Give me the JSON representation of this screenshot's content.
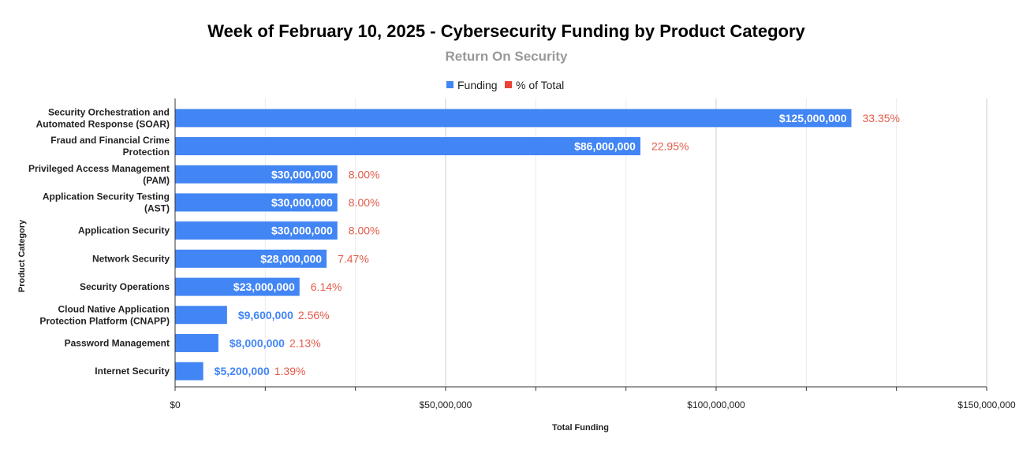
{
  "colors": {
    "funding": "#4285f4",
    "percent": "#ea4335",
    "grid_major": "#cccccc",
    "grid_minor": "#ebebeb",
    "axis": "#333333"
  },
  "chart_data": {
    "type": "bar",
    "orientation": "horizontal",
    "title": "Week of February 10, 2025 - Cybersecurity Funding by Product Category",
    "subtitle": "Return On Security",
    "xlabel": "Total Funding",
    "ylabel": "Product Category",
    "xlim": [
      0,
      150000000
    ],
    "legend": [
      {
        "name": "Funding",
        "color": "#4285f4"
      },
      {
        "name": "% of Total",
        "color": "#ea4335"
      }
    ],
    "legend_position": "top-center",
    "grid": true,
    "x_ticks": [
      {
        "value": 0,
        "label": "$0"
      },
      {
        "value": 50000000,
        "label": "$50,000,000"
      },
      {
        "value": 100000000,
        "label": "$100,000,000"
      },
      {
        "value": 150000000,
        "label": "$150,000,000"
      }
    ],
    "minor_ticks": [
      16666667,
      33333333,
      66666667,
      83333333,
      116666667,
      133333333
    ],
    "categories": [
      {
        "lines": [
          "Security Orchestration and",
          "Automated Response (SOAR)"
        ],
        "value": 125000000,
        "value_label": "$125,000,000",
        "percent_label": "33.35%"
      },
      {
        "lines": [
          "Fraud and Financial Crime",
          "Protection"
        ],
        "value": 86000000,
        "value_label": "$86,000,000",
        "percent_label": "22.95%"
      },
      {
        "lines": [
          "Privileged Access Management",
          "(PAM)"
        ],
        "value": 30000000,
        "value_label": "$30,000,000",
        "percent_label": "8.00%"
      },
      {
        "lines": [
          "Application Security Testing",
          "(AST)"
        ],
        "value": 30000000,
        "value_label": "$30,000,000",
        "percent_label": "8.00%"
      },
      {
        "lines": [
          "Application Security"
        ],
        "value": 30000000,
        "value_label": "$30,000,000",
        "percent_label": "8.00%"
      },
      {
        "lines": [
          "Network Security"
        ],
        "value": 28000000,
        "value_label": "$28,000,000",
        "percent_label": "7.47%"
      },
      {
        "lines": [
          "Security Operations"
        ],
        "value": 23000000,
        "value_label": "$23,000,000",
        "percent_label": "6.14%"
      },
      {
        "lines": [
          "Cloud Native Application",
          "Protection Platform (CNAPP)"
        ],
        "value": 9600000,
        "value_label": "$9,600,000",
        "percent_label": "2.56%"
      },
      {
        "lines": [
          "Password Management"
        ],
        "value": 8000000,
        "value_label": "$8,000,000",
        "percent_label": "2.13%"
      },
      {
        "lines": [
          "Internet Security"
        ],
        "value": 5200000,
        "value_label": "$5,200,000",
        "percent_label": "1.39%"
      }
    ]
  }
}
